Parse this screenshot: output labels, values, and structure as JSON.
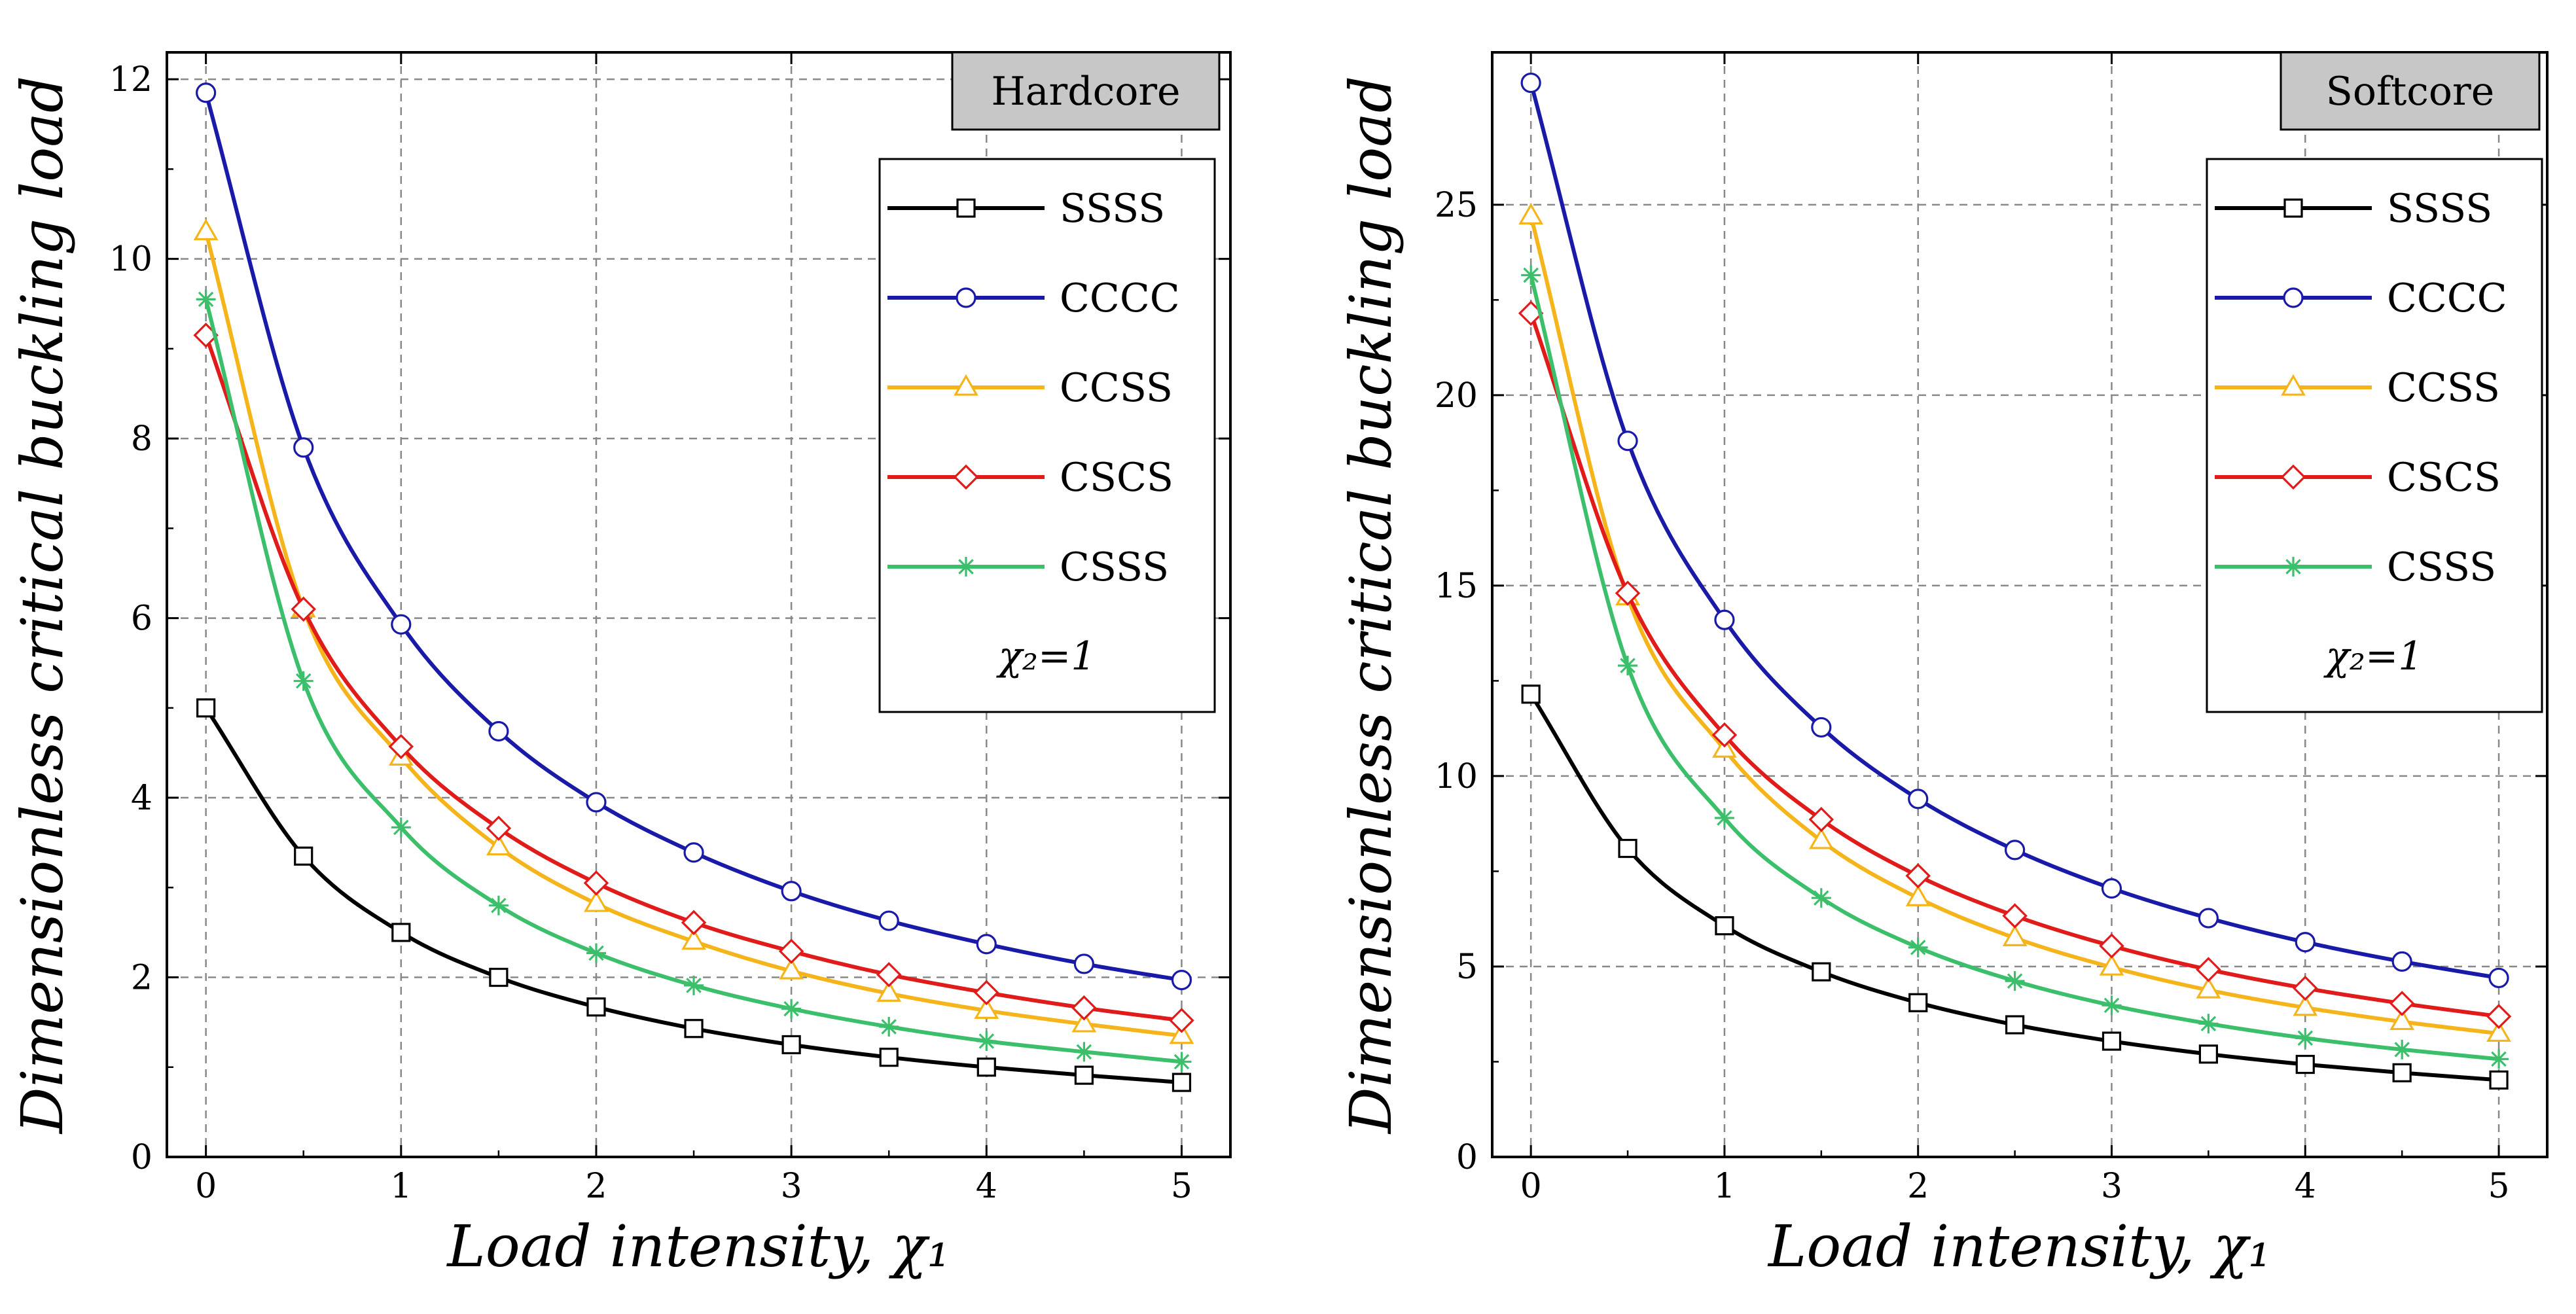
{
  "chart_data": [
    {
      "type": "line",
      "title": "",
      "tag": "Hardcore",
      "annotation": "χ₂=1",
      "xlabel": "Load intensity, χ₁",
      "ylabel": "Dimensionless critical buckling load",
      "xlim": [
        -0.2,
        5.25
      ],
      "ylim": [
        0,
        12.3
      ],
      "xticks": [
        0,
        1,
        2,
        3,
        4,
        5
      ],
      "yticks": [
        0,
        2,
        4,
        6,
        8,
        10,
        12
      ],
      "x": [
        0,
        0.5,
        1,
        1.5,
        2,
        2.5,
        3,
        3.5,
        4,
        4.5,
        5
      ],
      "grid": true,
      "legend_position": "top-right",
      "series": [
        {
          "name": "SSSS",
          "color": "#000000",
          "marker": "square",
          "values": [
            5.0,
            3.35,
            2.5,
            2.0,
            1.67,
            1.43,
            1.25,
            1.11,
            1.0,
            0.91,
            0.83
          ]
        },
        {
          "name": "CCCC",
          "color": "#1a1aa8",
          "marker": "circle",
          "values": [
            11.85,
            7.9,
            5.93,
            4.74,
            3.95,
            3.39,
            2.96,
            2.63,
            2.37,
            2.15,
            1.97
          ]
        },
        {
          "name": "CCSS",
          "color": "#f5b51a",
          "marker": "triangle",
          "values": [
            10.3,
            6.1,
            4.45,
            3.45,
            2.82,
            2.4,
            2.07,
            1.82,
            1.63,
            1.48,
            1.35
          ]
        },
        {
          "name": "CSCS",
          "color": "#e11a1a",
          "marker": "diamond",
          "values": [
            9.15,
            6.1,
            4.57,
            3.66,
            3.05,
            2.61,
            2.29,
            2.03,
            1.83,
            1.66,
            1.52
          ]
        },
        {
          "name": "CSSS",
          "color": "#3cbf6a",
          "marker": "asterisk",
          "values": [
            9.55,
            5.3,
            3.67,
            2.8,
            2.27,
            1.91,
            1.65,
            1.45,
            1.29,
            1.17,
            1.06
          ]
        }
      ]
    },
    {
      "type": "line",
      "title": "",
      "tag": "Softcore",
      "annotation": "χ₂=1",
      "xlabel": "Load intensity, χ₁",
      "ylabel": "Dimensionless critical buckling load",
      "xlim": [
        -0.2,
        5.25
      ],
      "ylim": [
        0,
        29
      ],
      "xticks": [
        0,
        1,
        2,
        3,
        4,
        5
      ],
      "yticks": [
        0,
        5,
        10,
        15,
        20,
        25
      ],
      "x": [
        0,
        0.5,
        1,
        1.5,
        2,
        2.5,
        3,
        3.5,
        4,
        4.5,
        5
      ],
      "grid": true,
      "legend_position": "top-right",
      "series": [
        {
          "name": "SSSS",
          "color": "#000000",
          "marker": "square",
          "values": [
            12.15,
            8.1,
            6.07,
            4.86,
            4.05,
            3.47,
            3.04,
            2.7,
            2.43,
            2.21,
            2.02
          ]
        },
        {
          "name": "CCCC",
          "color": "#1a1aa8",
          "marker": "circle",
          "values": [
            28.2,
            18.8,
            14.1,
            11.28,
            9.4,
            8.06,
            7.05,
            6.27,
            5.64,
            5.13,
            4.7
          ]
        },
        {
          "name": "CCSS",
          "color": "#f5b51a",
          "marker": "triangle",
          "values": [
            24.7,
            14.7,
            10.7,
            8.3,
            6.8,
            5.75,
            4.98,
            4.38,
            3.92,
            3.55,
            3.24
          ]
        },
        {
          "name": "CSCS",
          "color": "#e11a1a",
          "marker": "diamond",
          "values": [
            22.15,
            14.8,
            11.08,
            8.86,
            7.38,
            6.33,
            5.54,
            4.92,
            4.43,
            4.03,
            3.69
          ]
        },
        {
          "name": "CSSS",
          "color": "#3cbf6a",
          "marker": "asterisk",
          "values": [
            23.15,
            12.9,
            8.9,
            6.8,
            5.5,
            4.62,
            3.98,
            3.5,
            3.12,
            2.82,
            2.57
          ]
        }
      ]
    }
  ]
}
